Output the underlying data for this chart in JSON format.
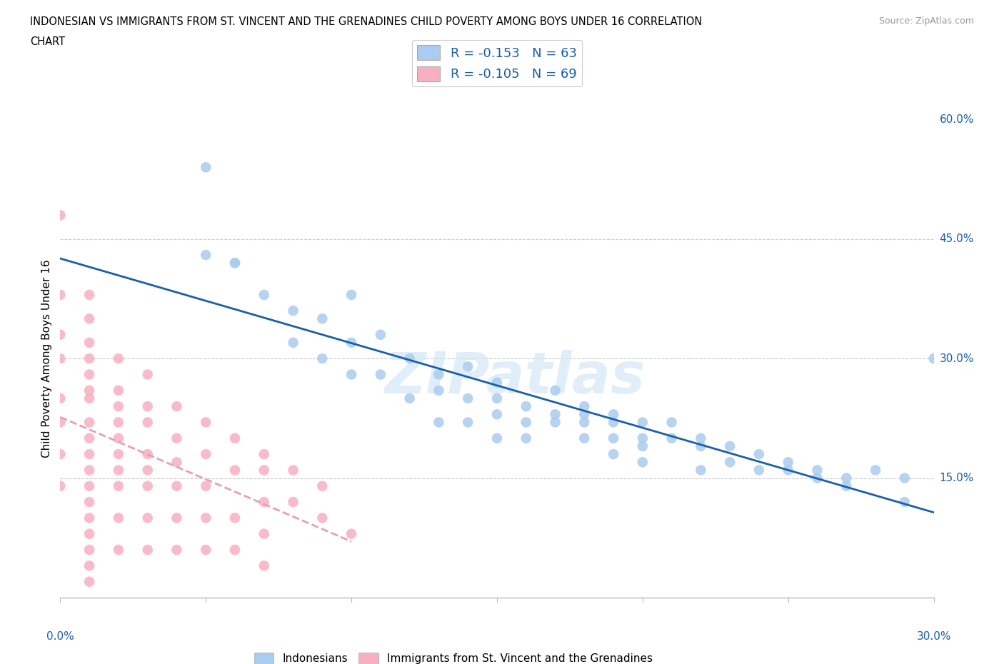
{
  "title_line1": "INDONESIAN VS IMMIGRANTS FROM ST. VINCENT AND THE GRENADINES CHILD POVERTY AMONG BOYS UNDER 16 CORRELATION",
  "title_line2": "CHART",
  "source": "Source: ZipAtlas.com",
  "ylabel_label": "Child Poverty Among Boys Under 16",
  "legend_r1": "R = -0.153   N = 63",
  "legend_r2": "R = -0.105   N = 69",
  "color_indonesian": "#aaccf0",
  "color_svg": "#f8b0c0",
  "color_line_indonesian": "#1a5faa",
  "color_line_svg": "#e8a0b0",
  "watermark": "ZIPatlas",
  "indonesian_scatter_x": [
    0.05,
    0.05,
    0.06,
    0.06,
    0.07,
    0.08,
    0.08,
    0.09,
    0.09,
    0.1,
    0.1,
    0.1,
    0.11,
    0.11,
    0.12,
    0.12,
    0.13,
    0.13,
    0.13,
    0.14,
    0.14,
    0.14,
    0.15,
    0.15,
    0.15,
    0.15,
    0.16,
    0.16,
    0.16,
    0.17,
    0.17,
    0.17,
    0.18,
    0.18,
    0.18,
    0.18,
    0.19,
    0.19,
    0.19,
    0.19,
    0.2,
    0.2,
    0.2,
    0.2,
    0.21,
    0.21,
    0.22,
    0.22,
    0.22,
    0.23,
    0.23,
    0.24,
    0.24,
    0.25,
    0.25,
    0.26,
    0.26,
    0.27,
    0.27,
    0.28,
    0.29,
    0.29,
    0.3
  ],
  "indonesian_scatter_y": [
    0.54,
    0.43,
    0.42,
    0.42,
    0.38,
    0.36,
    0.32,
    0.35,
    0.3,
    0.32,
    0.28,
    0.38,
    0.33,
    0.28,
    0.3,
    0.25,
    0.28,
    0.26,
    0.22,
    0.25,
    0.29,
    0.22,
    0.27,
    0.25,
    0.23,
    0.2,
    0.24,
    0.22,
    0.2,
    0.26,
    0.23,
    0.22,
    0.24,
    0.23,
    0.22,
    0.2,
    0.23,
    0.22,
    0.2,
    0.18,
    0.22,
    0.2,
    0.19,
    0.17,
    0.22,
    0.2,
    0.2,
    0.19,
    0.16,
    0.19,
    0.17,
    0.18,
    0.16,
    0.17,
    0.16,
    0.15,
    0.16,
    0.15,
    0.14,
    0.16,
    0.15,
    0.12,
    0.3
  ],
  "svgrennadines_scatter_x": [
    0.0,
    0.0,
    0.0,
    0.0,
    0.0,
    0.0,
    0.0,
    0.0,
    0.01,
    0.01,
    0.01,
    0.01,
    0.01,
    0.01,
    0.01,
    0.01,
    0.01,
    0.01,
    0.01,
    0.01,
    0.01,
    0.01,
    0.01,
    0.01,
    0.01,
    0.01,
    0.02,
    0.02,
    0.02,
    0.02,
    0.02,
    0.02,
    0.02,
    0.02,
    0.02,
    0.02,
    0.03,
    0.03,
    0.03,
    0.03,
    0.03,
    0.03,
    0.03,
    0.03,
    0.04,
    0.04,
    0.04,
    0.04,
    0.04,
    0.04,
    0.05,
    0.05,
    0.05,
    0.05,
    0.05,
    0.06,
    0.06,
    0.06,
    0.06,
    0.07,
    0.07,
    0.07,
    0.07,
    0.07,
    0.08,
    0.08,
    0.09,
    0.09,
    0.1
  ],
  "svgrennadines_scatter_y": [
    0.48,
    0.38,
    0.33,
    0.3,
    0.25,
    0.22,
    0.18,
    0.14,
    0.38,
    0.35,
    0.32,
    0.3,
    0.28,
    0.26,
    0.25,
    0.22,
    0.2,
    0.18,
    0.16,
    0.14,
    0.12,
    0.1,
    0.08,
    0.06,
    0.04,
    0.02,
    0.3,
    0.26,
    0.24,
    0.22,
    0.2,
    0.18,
    0.16,
    0.14,
    0.1,
    0.06,
    0.28,
    0.24,
    0.22,
    0.18,
    0.16,
    0.14,
    0.1,
    0.06,
    0.24,
    0.2,
    0.17,
    0.14,
    0.1,
    0.06,
    0.22,
    0.18,
    0.14,
    0.1,
    0.06,
    0.2,
    0.16,
    0.1,
    0.06,
    0.18,
    0.16,
    0.12,
    0.08,
    0.04,
    0.16,
    0.12,
    0.14,
    0.1,
    0.08
  ]
}
